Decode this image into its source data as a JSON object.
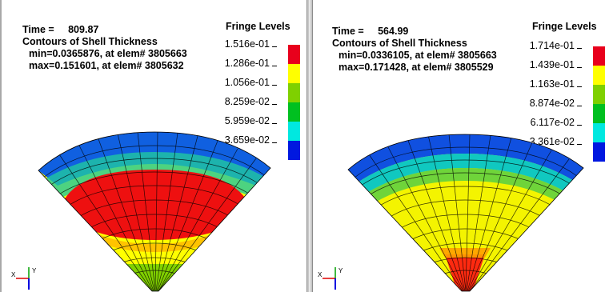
{
  "left": {
    "time_label": "Time =",
    "time_value": "809.87",
    "contour_title": "Contours of Shell Thickness",
    "min_text": "min=0.0365876, at elem# 3805663",
    "max_text": "max=0.151601, at elem# 3805632",
    "fringe_title": "Fringe Levels",
    "levels": [
      "1.516e-01",
      "1.286e-01",
      "1.056e-01",
      "8.259e-02",
      "5.959e-02",
      "3.659e-02"
    ]
  },
  "right": {
    "time_label": "Time =",
    "time_value": "564.99",
    "contour_title": "Contours of Shell Thickness",
    "min_text": "min=0.0336105, at elem# 3805663",
    "max_text": "max=0.171428, at elem# 3805529",
    "fringe_title": "Fringe Levels",
    "levels": [
      "1.714e-01",
      "1.439e-01",
      "1.163e-01",
      "8.874e-02",
      "6.117e-02",
      "3.361e-02"
    ]
  },
  "legend_colors": [
    "#e8001c",
    "#ffff00",
    "#7fd000",
    "#00c020",
    "#00e8e0",
    "#0018e0"
  ],
  "triad": {
    "x_label": "X",
    "y_label": "Y"
  }
}
